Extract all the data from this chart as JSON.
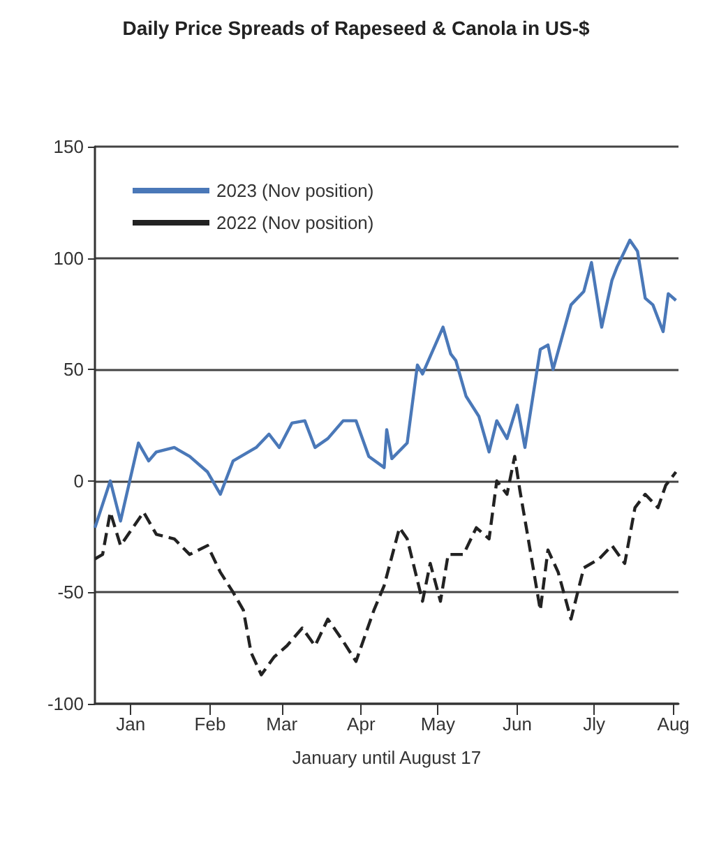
{
  "chart_data": {
    "type": "line",
    "title": "Daily Price Spreads of Rapeseed & Canola in US-$",
    "xlabel": "January until August 17",
    "xlim": [
      "--01-01",
      "--08-17"
    ],
    "xticks": [
      {
        "value": "--01-15",
        "label": "Jan"
      },
      {
        "value": "--02-15",
        "label": "Feb"
      },
      {
        "value": "--03-15",
        "label": "Mar"
      },
      {
        "value": "--04-15",
        "label": "Apr"
      },
      {
        "value": "--05-15",
        "label": "May"
      },
      {
        "value": "--06-15",
        "label": "Jun"
      },
      {
        "value": "--07-15",
        "label": "Jly"
      },
      {
        "value": "--08-15",
        "label": "Aug"
      }
    ],
    "ylim": [
      -100,
      150
    ],
    "yticks": [
      -100,
      -50,
      0,
      50,
      100,
      150
    ],
    "grid": "y",
    "legend": "top left",
    "marker": "none",
    "series": [
      {
        "name": "2023 (Nov position)",
        "color": "#4a78b8",
        "line_style": "solid",
        "x": [
          "--01-01",
          "--01-07",
          "--01-11",
          "--01-18",
          "--01-22",
          "--01-25",
          "--02-01",
          "--02-07",
          "--02-14",
          "--02-19",
          "--02-24",
          "--03-05",
          "--03-10",
          "--03-14",
          "--03-19",
          "--03-24",
          "--03-28",
          "--04-02",
          "--04-08",
          "--04-13",
          "--04-18",
          "--04-24",
          "--04-25",
          "--04-27",
          "--05-03",
          "--05-07",
          "--05-09",
          "--05-17",
          "--05-20",
          "--05-22",
          "--05-26",
          "--05-31",
          "--06-04",
          "--06-07",
          "--06-11",
          "--06-15",
          "--06-18",
          "--06-24",
          "--06-27",
          "--06-29",
          "--07-06",
          "--07-11",
          "--07-14",
          "--07-18",
          "--07-22",
          "--07-24",
          "--07-29",
          "--08-01",
          "--08-04",
          "--08-07",
          "--08-11",
          "--08-13",
          "--08-16"
        ],
        "values": [
          -21,
          0,
          -18,
          17,
          9,
          13,
          15,
          11,
          4,
          -6,
          9,
          15,
          21,
          15,
          26,
          27,
          15,
          19,
          27,
          27,
          11,
          6,
          23,
          10,
          17,
          52,
          48,
          69,
          57,
          54,
          38,
          29,
          13,
          27,
          19,
          34,
          15,
          59,
          61,
          50,
          79,
          85,
          98,
          69,
          90,
          96,
          108,
          103,
          82,
          79,
          67,
          84,
          81
        ]
      },
      {
        "name": "2022 (Nov position)",
        "color": "#222222",
        "line_style": "dashed",
        "x": [
          "--01-01",
          "--01-04",
          "--01-07",
          "--01-11",
          "--01-20",
          "--01-25",
          "--02-01",
          "--02-07",
          "--02-14",
          "--02-19",
          "--02-24",
          "--02-28",
          "--03-03",
          "--03-07",
          "--03-12",
          "--03-17",
          "--03-23",
          "--03-28",
          "--04-02",
          "--04-08",
          "--04-13",
          "--04-20",
          "--04-24",
          "--04-30",
          "--05-03",
          "--05-09",
          "--05-12",
          "--05-16",
          "--05-19",
          "--05-25",
          "--05-30",
          "--06-04",
          "--06-07",
          "--06-11",
          "--06-14",
          "--06-16",
          "--06-19",
          "--06-24",
          "--06-27",
          "--07-01",
          "--07-06",
          "--07-11",
          "--07-17",
          "--07-22",
          "--07-27",
          "--07-31",
          "--08-04",
          "--08-09",
          "--08-12",
          "--08-16"
        ],
        "values": [
          -35,
          -33,
          -14,
          -29,
          -14,
          -24,
          -26,
          -33,
          -29,
          -41,
          -50,
          -58,
          -77,
          -87,
          -79,
          -74,
          -66,
          -74,
          -62,
          -72,
          -81,
          -58,
          -47,
          -21,
          -26,
          -54,
          -37,
          -54,
          -33,
          -33,
          -21,
          -26,
          0,
          -6,
          11,
          -4,
          -24,
          -58,
          -31,
          -41,
          -62,
          -39,
          -35,
          -29,
          -37,
          -12,
          -6,
          -12,
          -2,
          4
        ]
      }
    ]
  }
}
